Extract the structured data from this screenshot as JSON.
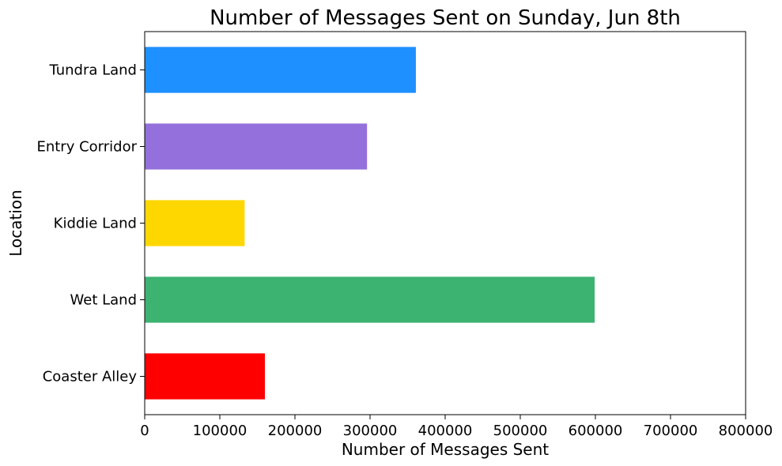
{
  "chart_data": {
    "type": "bar",
    "orientation": "horizontal",
    "title": "Number of Messages Sent on Sunday, Jun 8th",
    "xlabel": "Number of Messages Sent",
    "ylabel": "Location",
    "categories": [
      "Coaster Alley",
      "Wet Land",
      "Kiddie Land",
      "Entry Corridor",
      "Tundra Land"
    ],
    "values": [
      160000,
      599000,
      133000,
      296000,
      361000
    ],
    "colors": [
      "#ff0000",
      "#3cb371",
      "#ffd700",
      "#9370db",
      "#1e90ff"
    ],
    "xlim": [
      0,
      800000
    ],
    "xticks": [
      0,
      100000,
      200000,
      300000,
      400000,
      500000,
      600000,
      700000,
      800000
    ],
    "xtick_labels": [
      "0",
      "100000",
      "200000",
      "300000",
      "400000",
      "500000",
      "600000",
      "700000",
      "800000"
    ],
    "grid": false,
    "legend": "none"
  }
}
